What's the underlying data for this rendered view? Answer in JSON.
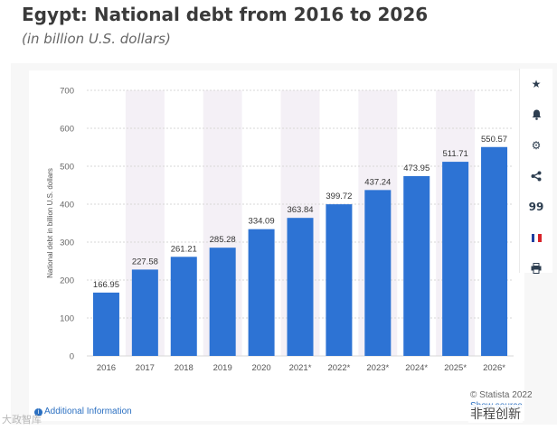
{
  "header": {
    "title": "Egypt: National debt from 2016 to 2026",
    "subtitle": "(in billion U.S. dollars)"
  },
  "toolbar": {
    "icons": [
      "star-icon",
      "bell-icon",
      "gear-icon",
      "share-icon",
      "quote-icon",
      "flag-fr-icon",
      "print-icon"
    ],
    "quote_glyph": "99"
  },
  "footer": {
    "additional_info": "Additional Information",
    "copyright": "© Statista 2022",
    "show_source": "Show source"
  },
  "watermarks": {
    "left": "大政智库",
    "right": "非程创新"
  },
  "colors": {
    "bar": "#2d73d4",
    "forecast_band": "#f4f0f6",
    "grid": "#d7d7d7",
    "text": "#3a3a3a",
    "link": "#2a6fc1"
  },
  "chart_data": {
    "type": "bar",
    "title": "Egypt: National debt from 2016 to 2026",
    "subtitle": "(in billion U.S. dollars)",
    "xlabel": "",
    "ylabel": "National debt in billion U.S. dollars",
    "categories": [
      "2016",
      "2017",
      "2018",
      "2019",
      "2020",
      "2021*",
      "2022*",
      "2023*",
      "2024*",
      "2025*",
      "2026*"
    ],
    "values": [
      166.95,
      227.58,
      261.21,
      285.28,
      334.09,
      363.84,
      399.72,
      437.24,
      473.95,
      511.71,
      550.57
    ],
    "value_labels": [
      "166.95",
      "227.58",
      "261.21",
      "285.28",
      "334.09",
      "363.84",
      "399.72",
      "437.24",
      "473.95",
      "511.71",
      "550.57"
    ],
    "ylim": [
      0,
      700
    ],
    "yticks": [
      0,
      100,
      200,
      300,
      400,
      500,
      600,
      700
    ],
    "grid": true,
    "forecast_from_index": 5
  }
}
